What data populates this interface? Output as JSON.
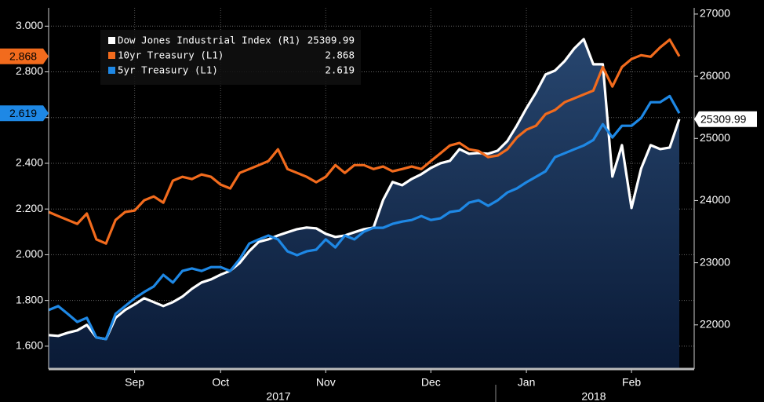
{
  "chart_data": {
    "type": "line",
    "categories": [
      null,
      null,
      null,
      null,
      null,
      null,
      null,
      null,
      null,
      "Sep",
      null,
      null,
      null,
      null,
      null,
      null,
      null,
      null,
      "Oct",
      null,
      null,
      null,
      null,
      null,
      null,
      null,
      null,
      null,
      null,
      "Nov",
      null,
      null,
      null,
      null,
      null,
      null,
      null,
      null,
      null,
      null,
      "Dec",
      null,
      null,
      null,
      null,
      null,
      null,
      null,
      null,
      null,
      "Jan",
      null,
      null,
      null,
      null,
      null,
      null,
      null,
      null,
      null,
      null,
      "Feb",
      null,
      null,
      null,
      null,
      null
    ],
    "years": [
      "2017",
      "2018"
    ],
    "series": [
      {
        "name": "Dow Jones Industrial Index (R1)",
        "color": "#ffffff",
        "axis": "y2",
        "values": [
          21836,
          21823,
          21874,
          21912,
          22000,
          21798,
          21773,
          22114,
          22240,
          22328,
          22429,
          22366,
          22303,
          22366,
          22455,
          22581,
          22682,
          22732,
          22808,
          22871,
          22997,
          23187,
          23338,
          23376,
          23439,
          23490,
          23540,
          23566,
          23553,
          23465,
          23414,
          23439,
          23490,
          23540,
          23566,
          24008,
          24298,
          24247,
          24348,
          24424,
          24525,
          24601,
          24639,
          24828,
          24753,
          24765,
          24753,
          24803,
          24955,
          25207,
          25485,
          25737,
          26028,
          26091,
          26242,
          26444,
          26596,
          26192,
          26192,
          24386,
          24891,
          23881,
          24513,
          24891,
          24828,
          24853,
          25309.99
        ]
      },
      {
        "name": "10yr Treasury (L1)",
        "color": "#f26b1d",
        "axis": "y",
        "values": [
          2.187,
          2.169,
          2.152,
          2.135,
          2.18,
          2.067,
          2.049,
          2.152,
          2.187,
          2.193,
          2.238,
          2.255,
          2.228,
          2.324,
          2.341,
          2.331,
          2.351,
          2.341,
          2.307,
          2.29,
          2.358,
          2.375,
          2.392,
          2.41,
          2.461,
          2.375,
          2.358,
          2.341,
          2.317,
          2.341,
          2.392,
          2.358,
          2.392,
          2.392,
          2.375,
          2.386,
          2.365,
          2.375,
          2.386,
          2.375,
          2.41,
          2.444,
          2.478,
          2.489,
          2.461,
          2.454,
          2.427,
          2.434,
          2.461,
          2.513,
          2.547,
          2.564,
          2.615,
          2.633,
          2.667,
          2.684,
          2.701,
          2.718,
          2.821,
          2.736,
          2.821,
          2.856,
          2.873,
          2.866,
          2.907,
          2.941,
          2.868
        ]
      },
      {
        "name": "5yr Treasury (L1)",
        "color": "#1e88e5",
        "axis": "y",
        "values": [
          1.758,
          1.775,
          1.741,
          1.706,
          1.724,
          1.638,
          1.631,
          1.741,
          1.775,
          1.809,
          1.837,
          1.861,
          1.912,
          1.878,
          1.929,
          1.94,
          1.929,
          1.946,
          1.946,
          1.929,
          1.981,
          2.049,
          2.067,
          2.084,
          2.067,
          2.015,
          1.998,
          2.015,
          2.022,
          2.067,
          2.032,
          2.084,
          2.067,
          2.101,
          2.118,
          2.118,
          2.135,
          2.145,
          2.152,
          2.169,
          2.152,
          2.159,
          2.187,
          2.193,
          2.228,
          2.238,
          2.214,
          2.238,
          2.272,
          2.29,
          2.317,
          2.341,
          2.365,
          2.427,
          2.444,
          2.461,
          2.478,
          2.502,
          2.571,
          2.513,
          2.564,
          2.564,
          2.598,
          2.667,
          2.667,
          2.694,
          2.619
        ]
      }
    ],
    "ylim": [
      1.5,
      3.08
    ],
    "yticks": [
      {
        "value": 1.6,
        "label": "1.600"
      },
      {
        "value": 1.8,
        "label": "1.800"
      },
      {
        "value": 2.0,
        "label": "2.000"
      },
      {
        "value": 2.2,
        "label": "2.200"
      },
      {
        "value": 2.4,
        "label": "2.400"
      },
      {
        "value": 2.6,
        "label": "2.600"
      },
      {
        "value": 2.8,
        "label": "2.800"
      },
      {
        "value": 3.0,
        "label": "3.000"
      }
    ],
    "y2lim": [
      21290,
      27100
    ],
    "y2ticks": [
      22000,
      23000,
      24000,
      25000,
      26000,
      27000
    ],
    "grid": true,
    "legend": "upper left"
  }
}
